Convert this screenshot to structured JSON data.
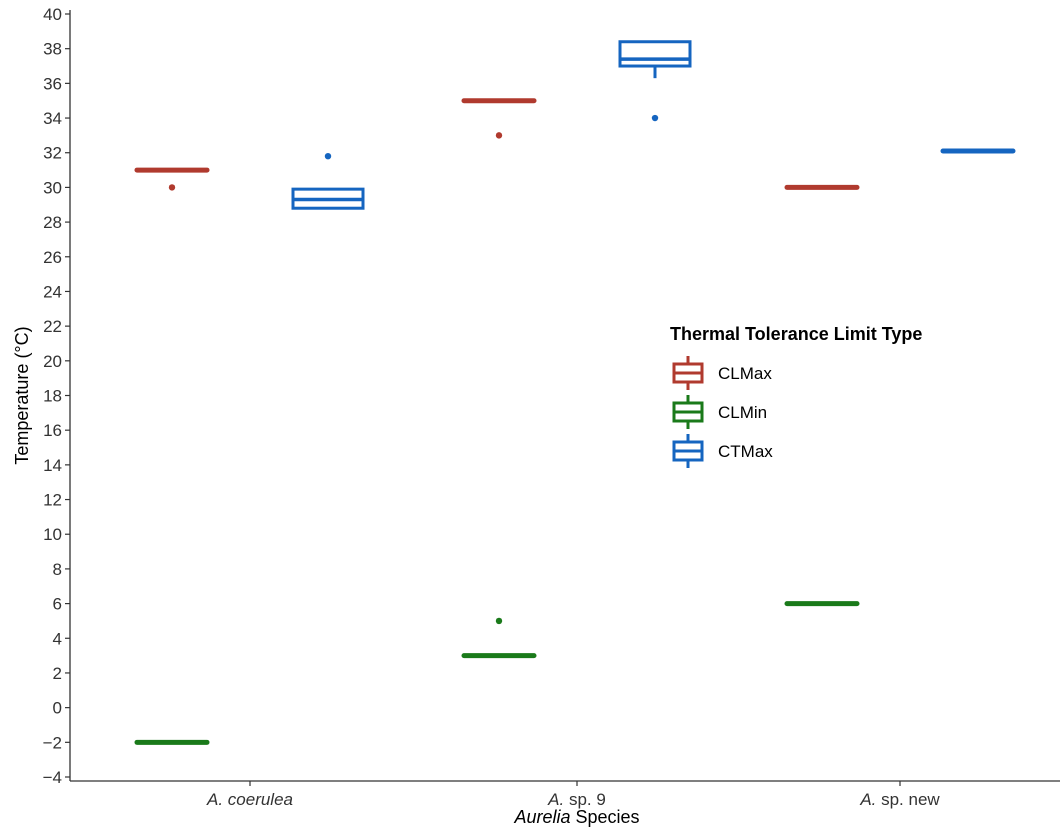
{
  "chart_data": {
    "type": "box",
    "title": "",
    "xlabel_italic": "Aurelia",
    "xlabel_rest": " Species",
    "ylabel": "Temperature (°C)",
    "ylim": [
      -4,
      40
    ],
    "y_ticks": [
      -4,
      -2,
      0,
      2,
      4,
      6,
      8,
      10,
      12,
      14,
      16,
      18,
      20,
      22,
      24,
      26,
      28,
      30,
      32,
      34,
      36,
      38,
      40
    ],
    "categories": [
      {
        "italic": "A. coerulea",
        "rest": ""
      },
      {
        "italic": "A.",
        "rest": " sp. 9"
      },
      {
        "italic": "A.",
        "rest": " sp. new"
      }
    ],
    "grid": false,
    "legend": {
      "title": "Thermal Tolerance Limit Type",
      "placement": "right-middle",
      "items": [
        "CLMax",
        "CLMin",
        "CTMax"
      ]
    },
    "series": [
      {
        "name": "CLMax",
        "color": "#b03a2e",
        "boxes": [
          {
            "category": 0,
            "min": 31,
            "q1": 31,
            "median": 31,
            "q3": 31,
            "max": 31,
            "outliers": [
              30
            ]
          },
          {
            "category": 1,
            "min": 35,
            "q1": 35,
            "median": 35,
            "q3": 35,
            "max": 35,
            "outliers": [
              33
            ]
          },
          {
            "category": 2,
            "min": 30,
            "q1": 30,
            "median": 30,
            "q3": 30,
            "max": 30,
            "outliers": []
          }
        ]
      },
      {
        "name": "CLMin",
        "color": "#1a7a1a",
        "boxes": [
          {
            "category": 0,
            "min": -2,
            "q1": -2,
            "median": -2,
            "q3": -2,
            "max": -2,
            "outliers": []
          },
          {
            "category": 1,
            "min": 3,
            "q1": 3,
            "median": 3,
            "q3": 3,
            "max": 3,
            "outliers": [
              5
            ]
          },
          {
            "category": 2,
            "min": 6,
            "q1": 6,
            "median": 6,
            "q3": 6,
            "max": 6,
            "outliers": []
          }
        ]
      },
      {
        "name": "CTMax",
        "color": "#1565c0",
        "boxes": [
          {
            "category": 0,
            "min": 28.8,
            "q1": 28.8,
            "median": 29.3,
            "q3": 29.9,
            "max": 29.9,
            "outliers": [
              31.8
            ]
          },
          {
            "category": 1,
            "min": 36.3,
            "q1": 37,
            "median": 37.4,
            "q3": 38.4,
            "max": 38.4,
            "outliers": [
              34
            ]
          },
          {
            "category": 2,
            "min": 32.1,
            "q1": 32.1,
            "median": 32.1,
            "q3": 32.1,
            "max": 32.1,
            "outliers": []
          }
        ]
      }
    ]
  }
}
